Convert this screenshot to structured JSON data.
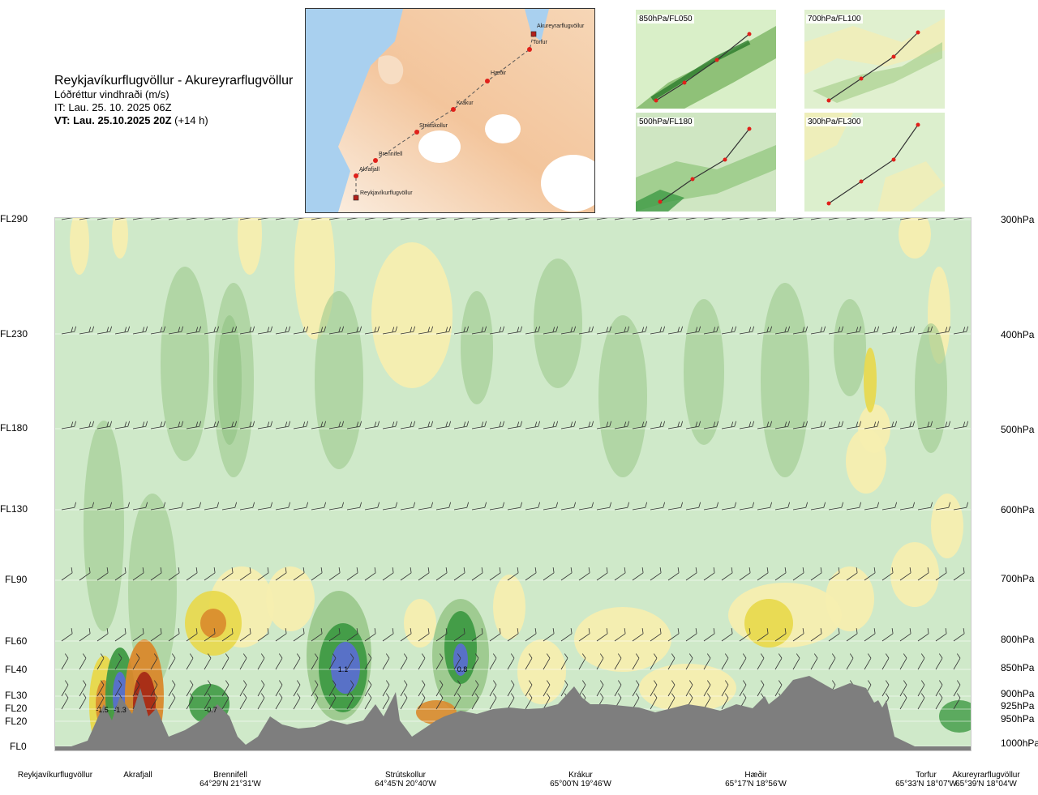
{
  "title_block": {
    "route": "Reykjavíkurflugvöllur - Akureyrarflugvöllur",
    "variable": "Lóðréttur vindhraði (m/s)",
    "issue_time": "IT: Lau. 25. 10. 2025 06Z",
    "valid_time": "VT: Lau. 25.10.2025 20Z",
    "lead": "(+14 h)"
  },
  "route_map": {
    "points": [
      {
        "name": "Akureyrarflugvöllur"
      },
      {
        "name": "Torfur"
      },
      {
        "name": "Hæðir"
      },
      {
        "name": "Krákur"
      },
      {
        "name": "Strútskollur"
      },
      {
        "name": "Brennifell"
      },
      {
        "name": "Akrafjall"
      },
      {
        "name": "Reykjavíkurflugvöllur"
      }
    ]
  },
  "level_maps": [
    {
      "label": "850hPa/FL050"
    },
    {
      "label": "700hPa/FL100"
    },
    {
      "label": "500hPa/FL180"
    },
    {
      "label": "300hPa/FL300"
    }
  ],
  "chart_data": {
    "type": "heatmap",
    "title": "Reykjavíkurflugvöllur - Akureyrarflugvöllur",
    "quantity": "Lóðréttur vindhraði (m/s)",
    "flight_levels": [
      "FL290",
      "FL230",
      "FL180",
      "FL130",
      "FL90",
      "FL60",
      "FL40",
      "FL30",
      "FL20",
      "FL20",
      "FL0"
    ],
    "pressure_levels": [
      "300hPa",
      "400hPa",
      "500hPa",
      "600hPa",
      "700hPa",
      "800hPa",
      "850hPa",
      "900hPa",
      "925hPa",
      "950hPa",
      "1000hPa"
    ],
    "stations": [
      {
        "name": "Reykjavíkurflugvöllur",
        "coord": ""
      },
      {
        "name": "Akrafjall",
        "coord": ""
      },
      {
        "name": "Brennifell",
        "coord": "64°29'N 21°31'W"
      },
      {
        "name": "Strútskollur",
        "coord": "64°45'N 20°40'W"
      },
      {
        "name": "Krákur",
        "coord": "65°00'N 19°46'W"
      },
      {
        "name": "Hæðir",
        "coord": "65°17'N 18°56'W"
      },
      {
        "name": "Torfur",
        "coord": "65°33'N 18°07'W"
      },
      {
        "name": "Akureyrarflugvöllur",
        "coord": "65°39'N 18°04'W"
      }
    ],
    "annotations": [
      {
        "text": "-1.5"
      },
      {
        "text": "-1.3"
      },
      {
        "text": "-0.7"
      },
      {
        "text": "1.1"
      },
      {
        "text": "0.8"
      }
    ],
    "colors": {
      "background": "#cfe9c9",
      "weak_down": "#f5eeb0",
      "down": "#e8d84a",
      "strong_down": "#d9892c",
      "very_strong_down": "#a72a16",
      "up": "#9cc98e",
      "strong_up": "#3f9a45",
      "very_strong_up": "#1e7b2a",
      "extreme_up": "#5a6fcf",
      "terrain": "#7e7e7e"
    }
  }
}
